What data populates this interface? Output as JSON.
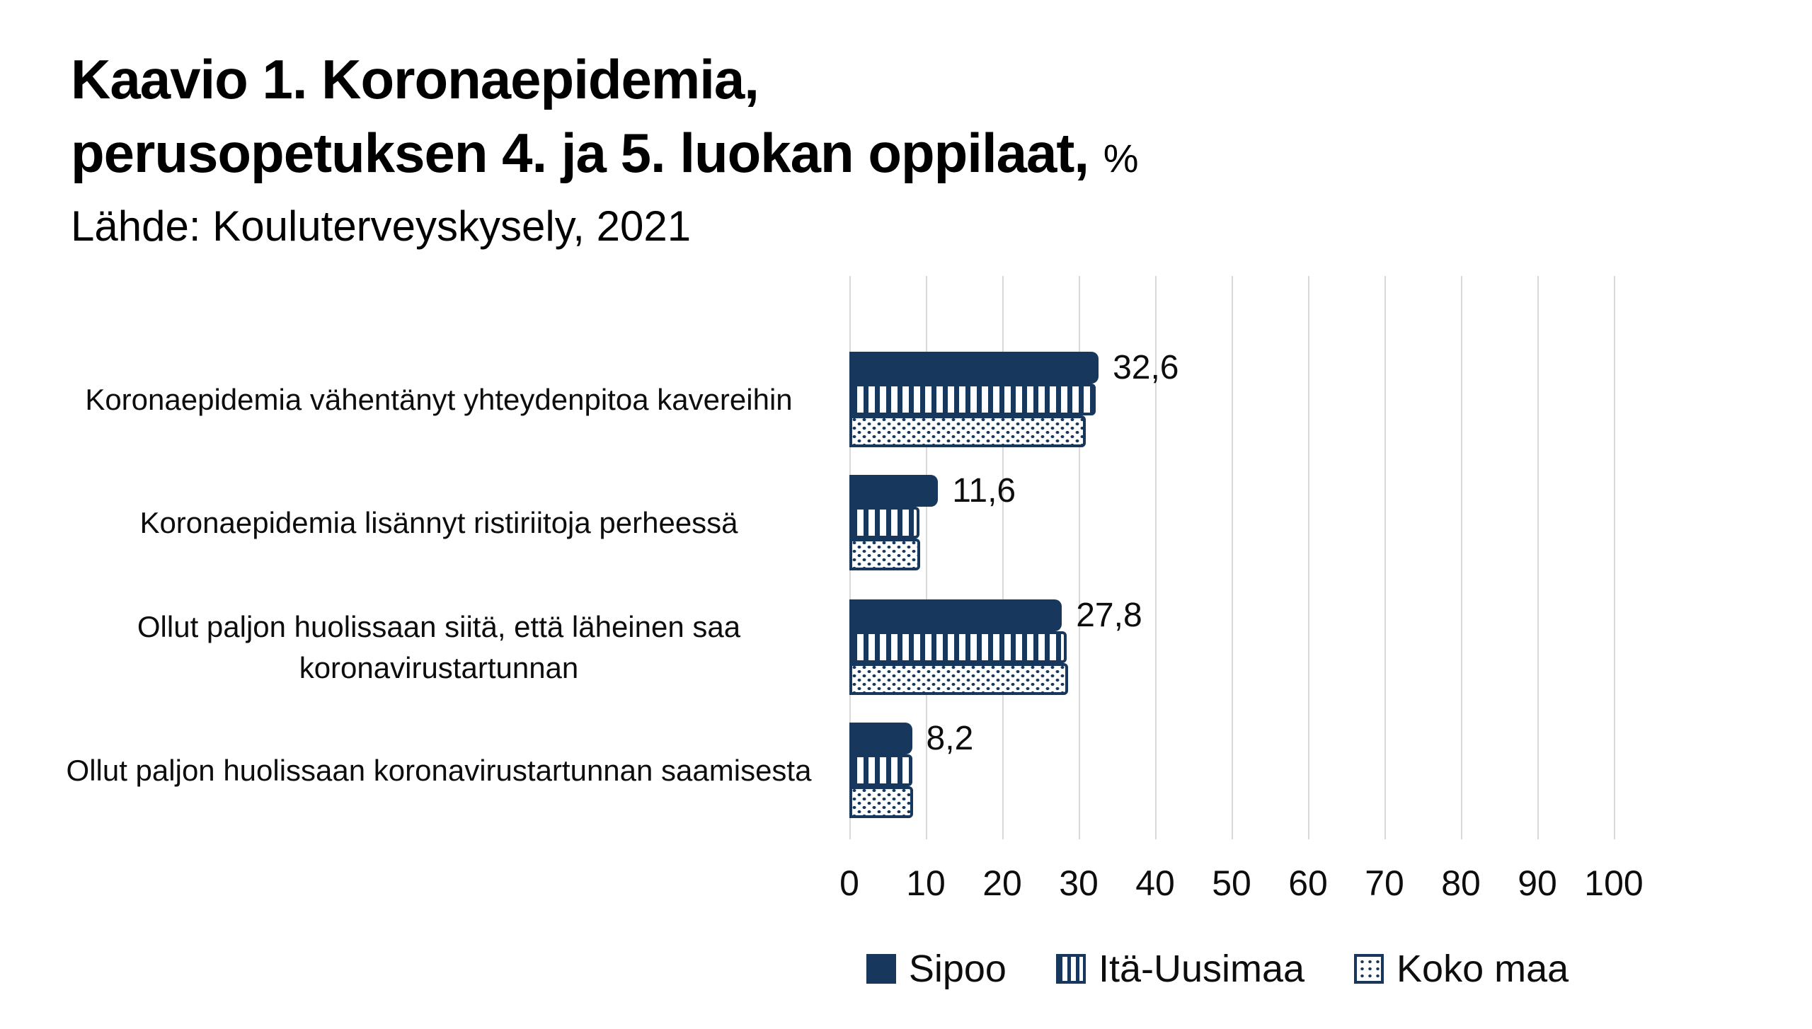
{
  "title": {
    "line1": "Kaavio 1. Koronaepidemia,",
    "line2": "perusopetuksen 4. ja 5. luokan oppilaat,",
    "line2_suffix": "%",
    "subtitle": "Lähde: Kouluterveyskysely, 2021"
  },
  "chart_data": {
    "type": "bar",
    "orientation": "horizontal",
    "title": "Kaavio 1. Koronaepidemia, perusopetuksen 4. ja 5. luokan oppilaat, %",
    "source": "Lähde: Kouluterveyskysely, 2021",
    "categories": [
      "Koronaepidemia vähentänyt yhteydenpitoa kavereihin",
      "Koronaepidemia lisännyt ristiriitoja perheessä",
      "Ollut paljon huolissaan siitä, että läheinen saa koronavirustartunnan",
      "Ollut paljon huolissaan koronavirustartunnan saamisesta"
    ],
    "series": [
      {
        "name": "Sipoo",
        "pattern": "solid",
        "values": [
          32.6,
          11.6,
          27.8,
          8.2
        ],
        "data_labels": [
          "32,6",
          "11,6",
          "27,8",
          "8,2"
        ]
      },
      {
        "name": "Itä-Uusimaa",
        "pattern": "stripes",
        "values": [
          32.2,
          9.2,
          28.4,
          8.2
        ],
        "data_labels": []
      },
      {
        "name": "Koko maa",
        "pattern": "dots",
        "values": [
          30.9,
          9.3,
          28.6,
          8.3
        ],
        "data_labels": []
      }
    ],
    "x_ticks": [
      0,
      10,
      20,
      30,
      40,
      50,
      60,
      70,
      80,
      90,
      100
    ],
    "xlim": [
      0,
      100
    ],
    "grid": "vertical",
    "legend_position": "bottom",
    "colors": {
      "bar_navy": "#17375d",
      "gridline": "#d9d9d9",
      "text": "#000000",
      "background": "#ffffff"
    }
  }
}
